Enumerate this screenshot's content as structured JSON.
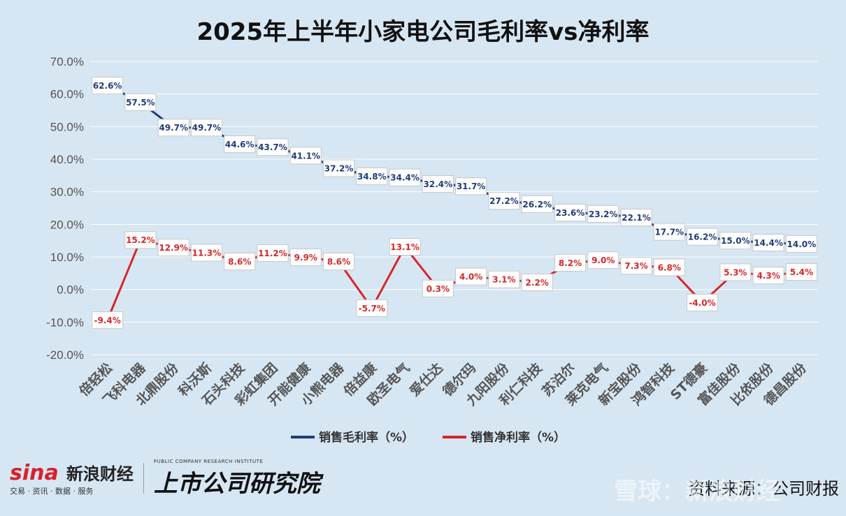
{
  "chart_data": {
    "type": "line",
    "title": "2025年上半年小家电公司毛利率vs净利率",
    "categories": [
      "倍轻松",
      "飞科电器",
      "北鼎股份",
      "科沃斯",
      "石头科技",
      "彩虹集团",
      "开能健康",
      "小熊电器",
      "倍益康",
      "欧圣电气",
      "爱仕达",
      "德尔玛",
      "九阳股份",
      "利仁科技",
      "苏泊尔",
      "莱克电气",
      "新宝股份",
      "鸿智科技",
      "ST德豪",
      "富佳股份",
      "比依股份",
      "德昌股份"
    ],
    "series": [
      {
        "name": "销售毛利率（%）",
        "color": "#1f3d7a",
        "values": [
          62.6,
          57.5,
          49.7,
          49.7,
          44.6,
          43.7,
          41.1,
          37.2,
          34.8,
          34.4,
          32.4,
          31.7,
          27.2,
          26.2,
          23.6,
          23.2,
          22.1,
          17.7,
          16.2,
          15.0,
          14.4,
          14.0
        ],
        "labels": [
          "62.6%",
          "57.5%",
          "49.7%",
          "49.7%",
          "44.6%",
          "43.7%",
          "41.1%",
          "37.2%",
          "34.8%",
          "34.4%",
          "32.4%",
          "31.7%",
          "27.2%",
          "26.2%",
          "23.6%",
          "23.2%",
          "22.1%",
          "17.7%",
          "16.2%",
          "15.0%",
          "14.4%",
          "14.0%"
        ]
      },
      {
        "name": "销售净利率（%）",
        "color": "#d62728",
        "values": [
          -9.4,
          15.2,
          12.9,
          11.3,
          8.6,
          11.2,
          9.9,
          8.6,
          -5.7,
          13.1,
          0.3,
          4.0,
          3.1,
          2.2,
          8.2,
          9.0,
          7.3,
          6.8,
          -4.0,
          5.3,
          4.3,
          5.4
        ],
        "labels": [
          "-9.4%",
          "15.2%",
          "12.9%",
          "11.3%",
          "8.6%",
          "11.2%",
          "9.9%",
          "8.6%",
          "-5.7%",
          "13.1%",
          "0.3%",
          "4.0%",
          "3.1%",
          "2.2%",
          "8.2%",
          "9.0%",
          "7.3%",
          "6.8%",
          "-4.0%",
          "5.3%",
          "4.3%",
          "5.4%"
        ]
      }
    ],
    "ylim": [
      -20,
      70
    ],
    "yticks": [
      "-20.0%",
      "-10.0%",
      "0.0%",
      "10.0%",
      "20.0%",
      "30.0%",
      "40.0%",
      "50.0%",
      "60.0%",
      "70.0%"
    ],
    "ytick_values": [
      -20,
      -10,
      0,
      10,
      20,
      30,
      40,
      50,
      60,
      70
    ],
    "grid": true,
    "legend_placement": "bottom"
  },
  "footer": {
    "sina_logo": "sina",
    "sina_name": "新浪财经",
    "sina_tagline": "交易 · 资讯 · 数据 · 服务",
    "institute_name": "上市公司研究院",
    "institute_en": "PUBLIC COMPANY RESEARCH INSTITUTE",
    "source": "资料来源：公司财报",
    "watermark": "雪球：新浪财经"
  }
}
